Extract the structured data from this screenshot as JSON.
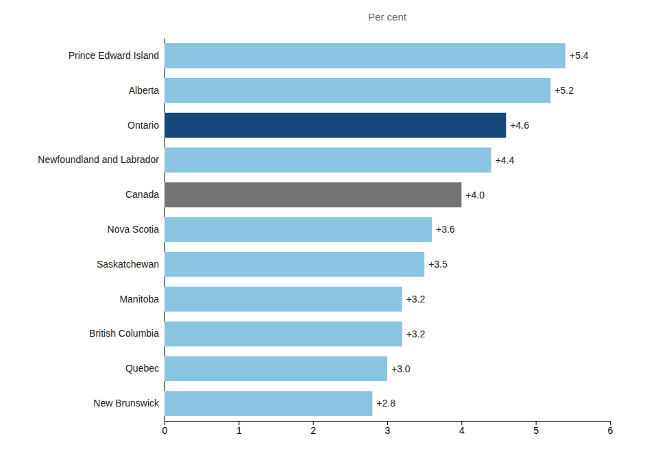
{
  "chart_data": {
    "type": "bar",
    "orientation": "horizontal",
    "title": "Per cent",
    "categories": [
      "New Brunswick",
      "Quebec",
      "British Columbia",
      "Manitoba",
      "Saskatchewan",
      "Nova Scotia",
      "Canada",
      "Newfoundland and Labrador",
      "Ontario",
      "Alberta",
      "Prince Edward Island"
    ],
    "values": [
      2.8,
      3.0,
      3.2,
      3.2,
      3.5,
      3.6,
      4.0,
      4.4,
      4.6,
      5.2,
      5.4
    ],
    "value_labels": [
      "+2.8",
      "+3.0",
      "+3.2",
      "+3.2",
      "+3.5",
      "+3.6",
      "+4.0",
      "+4.4",
      "+4.6",
      "+5.2",
      "+5.4"
    ],
    "data_labels": true,
    "colors": [
      "#89C4E1",
      "#89C4E1",
      "#89C4E1",
      "#89C4E1",
      "#89C4E1",
      "#89C4E1",
      "#737373",
      "#89C4E1",
      "#15487A",
      "#89C4E1",
      "#89C4E1"
    ],
    "xlim": [
      0,
      6
    ],
    "xticks": [
      0,
      1,
      2,
      3,
      4,
      5,
      6
    ],
    "grid": false
  }
}
